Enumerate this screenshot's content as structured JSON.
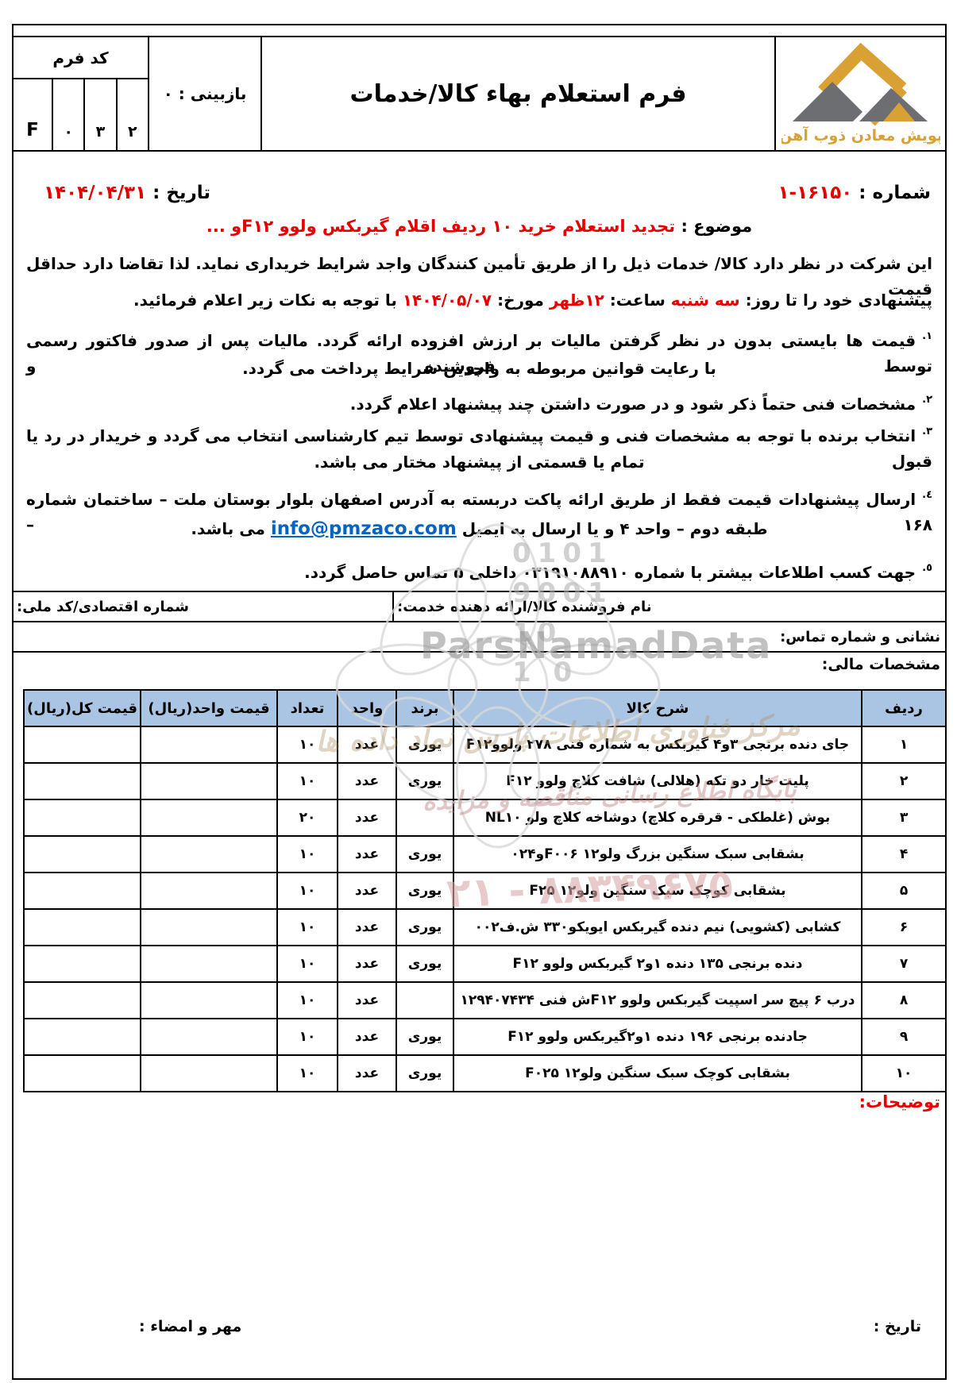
{
  "header": {
    "form_code_label": "کد فرم",
    "form_code_cells": [
      "F",
      "۰",
      "۳",
      "۲"
    ],
    "revision_label": "بازبینی : ۰",
    "title": "فرم استعلام بهاء کالا/خدمات",
    "logo_text": "پویش معادن ذوب آهن"
  },
  "meta": {
    "number_label": "شماره :",
    "number_value": "۱-۱۶۱۵۰",
    "date_label": "تاریخ :",
    "date_value": "۱۴۰۴/۰۴/۳۱",
    "subject_label": "موضوع :",
    "subject_text": "تجدید استعلام خرید ۱۰ ردیف اقلام گیربکس ولوو F۱۲و ..."
  },
  "intro": {
    "line1": "این شرکت در نظر دارد کالا/ خدمات ذیل را از طریق تأمین کنندگان واجد شرایط خریداری نماید. لذا تقاضا دارد حداقل قیمت",
    "line2_p1": "پیشنهادی خود را تا روز: ",
    "line2_day": "سه شنبه",
    "line2_p2": " ساعت: ",
    "line2_time": "۱۲ظهر",
    "line2_p3": " مورخ: ",
    "line2_date": "۱۴۰۴/۰۵/۰۷",
    "line2_p4": " با توجه به نکات زیر اعلام فرمائید."
  },
  "notes": {
    "n1_marker": "١.",
    "n1_line1": "قیمت ها بایستی بدون در نظر گرفتن مالیات بر ارزش افزوده ارائه گردد. مالیات پس از صدور فاکتور رسمی توسط فروشنده و",
    "n1_line2": "با رعایت قوانین مربوطه به واجدین شرایط پرداخت می گردد.",
    "n2_marker": "٢.",
    "n2_line1": "مشخصات فنی حتماً ذکر شود و در صورت داشتن چند پیشنهاد اعلام گردد.",
    "n3_marker": "٣.",
    "n3_line1": "انتخاب برنده با توجه به مشخصات فنی و قیمت پیشنهادی توسط تیم کارشناسی انتخاب می گردد و خریدار در رد یا قبول",
    "n3_line2": "تمام یا قسمتی از پیشنهاد مختار می باشد.",
    "n4_marker": "٤.",
    "n4_line1": "ارسال پیشنهادات قیمت فقط از طریق ارائه پاکت دربسته به آدرس اصفهان بلوار بوستان ملت – ساختمان شماره ۱۶۸ –",
    "n4_line2_before": "طبقه دوم – واحد ۴ و یا ارسال به ایمیل ",
    "n4_email": "info@pmzaco.com",
    "n4_line2_after": " می باشد.",
    "n5_marker": "٥.",
    "n5_line1": "جهت کسب اطلاعات بیشتر با شماره ۰۳۱۹۱۰۸۸۹۱۰ داخلی ۵ تماس حاصل گردد."
  },
  "vendor": {
    "name_label": "نام فروشنده کالا/ارائه دهنده خدمت:",
    "economic_label": "شماره اقتصادی/کد ملی:",
    "address_label": "نشانی و شماره تماس:"
  },
  "financial_section_label": "مشخصات مالی:",
  "table": {
    "headers": {
      "row": "ردیف",
      "desc": "شرح کالا",
      "brand": "برند",
      "unit": "واحد",
      "qty": "تعداد",
      "unit_price": "قیمت واحد(ریال)",
      "total_price": "قیمت کل(ریال)"
    },
    "rows": [
      {
        "row": "۱",
        "desc": "جای دنده برنجی ۳و۴ گیربکس به شماره فنی ۲۷۸ ولووF۱۲",
        "brand": "یوری",
        "unit": "عدد",
        "qty": "۱۰",
        "unit_price": "",
        "total_price": ""
      },
      {
        "row": "۲",
        "desc": "پلیت خار دو تکه (هلالی) شافت کلاچ ولوو F۱۲",
        "brand": "یوری",
        "unit": "عدد",
        "qty": "۱۰",
        "unit_price": "",
        "total_price": ""
      },
      {
        "row": "۳",
        "desc": "بوش (غلطکی - قرقره کلاچ) دوشاخه کلاچ ولو NL۱۰",
        "brand": "",
        "unit": "عدد",
        "qty": "۲۰",
        "unit_price": "",
        "total_price": ""
      },
      {
        "row": "۴",
        "desc": "بشقابی سبک سنگین بزرگ ولو۱۲ F۰۰۶و۰۲۴",
        "brand": "یوری",
        "unit": "عدد",
        "qty": "۱۰",
        "unit_price": "",
        "total_price": ""
      },
      {
        "row": "۵",
        "desc": "بشقابی کوچک سبک سنگین ولو۱۲ F۲۵",
        "brand": "یوری",
        "unit": "عدد",
        "qty": "۱۰",
        "unit_price": "",
        "total_price": ""
      },
      {
        "row": "۶",
        "desc": "کشابی (کشویی) نیم دنده گیربکس ایویکو۳۳۰ ش.ف۰۰۲",
        "brand": "یوری",
        "unit": "عدد",
        "qty": "۱۰",
        "unit_price": "",
        "total_price": ""
      },
      {
        "row": "۷",
        "desc": "دنده برنجی ۱۳۵ دنده ۱و۲ گیربکس ولوو F۱۲",
        "brand": "یوری",
        "unit": "عدد",
        "qty": "۱۰",
        "unit_price": "",
        "total_price": ""
      },
      {
        "row": "۸",
        "desc": "درب ۶ پیچ سر اسپیت گیربکس ولوو F۱۲ش فنی ۱۲۹۴۰۷۴۳۴",
        "brand": "",
        "unit": "عدد",
        "qty": "۱۰",
        "unit_price": "",
        "total_price": ""
      },
      {
        "row": "۹",
        "desc": "جادنده برنجی ۱۹۶ دنده ۱و۲گیربکس ولوو F۱۲",
        "brand": "یوری",
        "unit": "عدد",
        "qty": "۱۰",
        "unit_price": "",
        "total_price": ""
      },
      {
        "row": "۱۰",
        "desc": "بشقابی کوچک سبک سنگین ولو۱۲ F۰۲۵",
        "brand": "یوری",
        "unit": "عدد",
        "qty": "۱۰",
        "unit_price": "",
        "total_price": ""
      }
    ]
  },
  "remarks_label": "توضیحات:",
  "footer": {
    "date_label": "تاریخ :",
    "seal_label": "مهر و امضاء :"
  },
  "watermarks": {
    "brand": "ParsNamadData",
    "digits": [
      "0101",
      "9001",
      "10",
      "1 0"
    ],
    "script_line1": "مرکز فناوری اطلاعات پارس نماد داده ها",
    "script_line2": "پایگاه اطلاع رسانی مناقصه و مزایده",
    "phone": "۲۱ - ۸۸۳۴۹۶۷۵"
  },
  "colors": {
    "accent_red": "#e80000",
    "link_blue": "#0563c1",
    "table_header_bg": "#a9c5e3",
    "logo_gold": "#d9a033",
    "logo_gray": "#6d6e71",
    "watermark_gray": "#8f8f8f",
    "watermark_pink": "#dba8a8"
  }
}
